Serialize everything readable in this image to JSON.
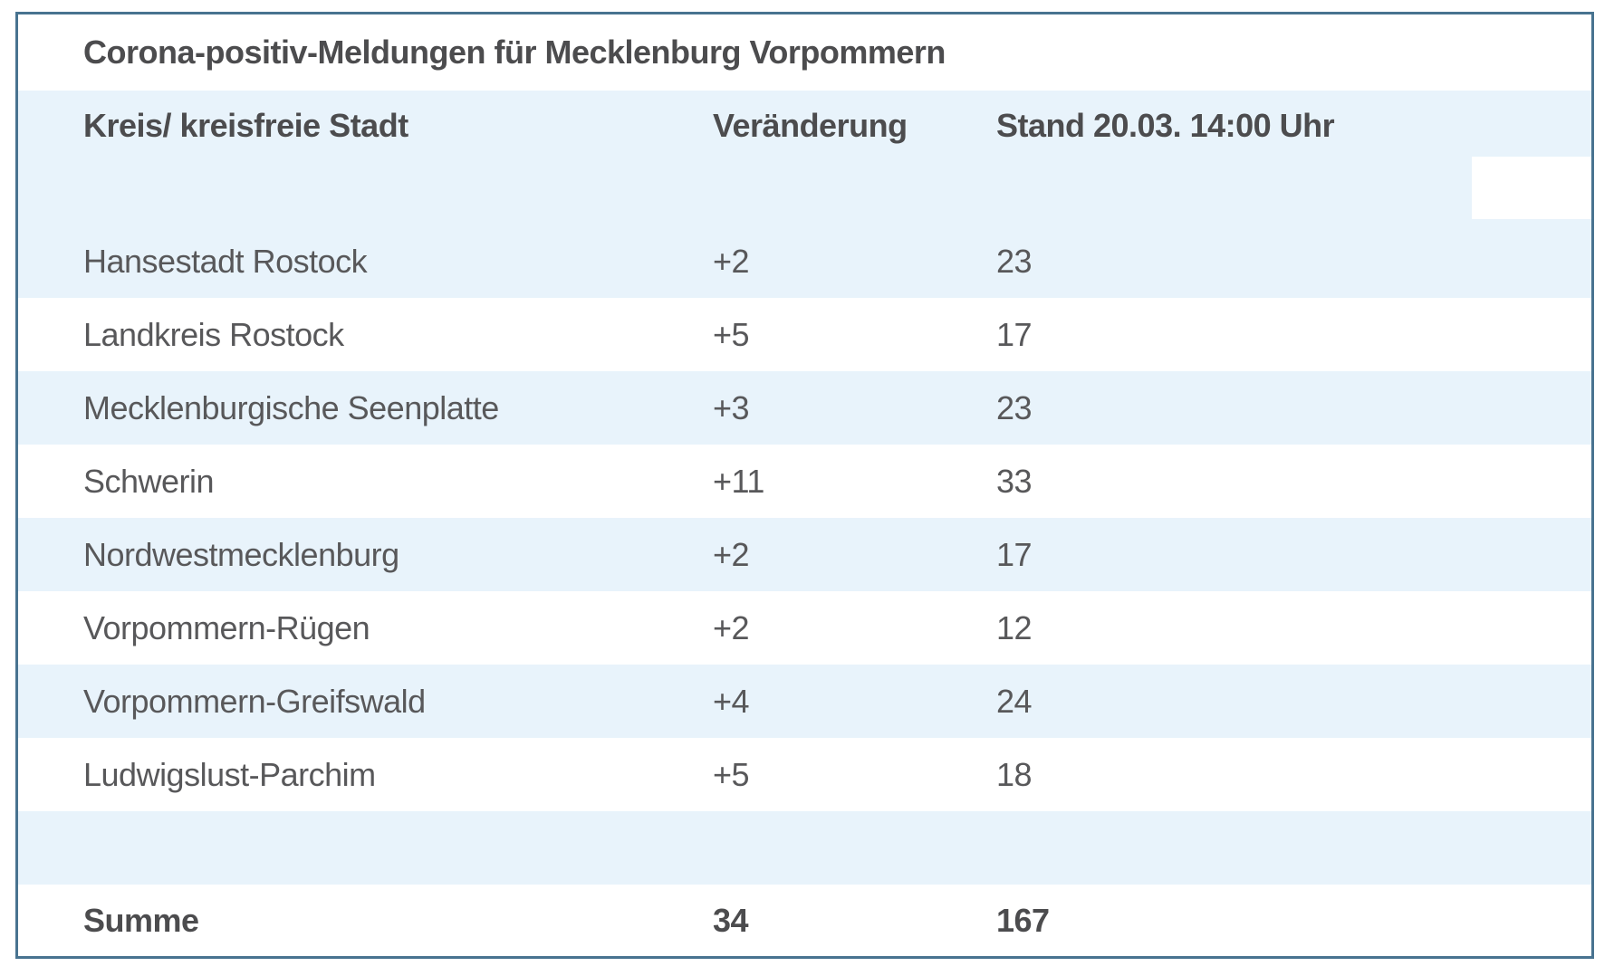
{
  "title": "Corona-positiv-Meldungen für Mecklenburg Vorpommern",
  "header": {
    "region": "Kreis/ kreisfreie Stadt",
    "change": "Veränderung",
    "stand": "Stand 20.03. 14:00 Uhr"
  },
  "rows": [
    {
      "name": "Hansestadt Rostock",
      "change": "+2",
      "count": "23"
    },
    {
      "name": "Landkreis Rostock",
      "change": "+5",
      "count": "17"
    },
    {
      "name": "Mecklenburgische Seenplatte",
      "change": "+3",
      "count": "23"
    },
    {
      "name": "Schwerin",
      "change": "+11",
      "count": "33"
    },
    {
      "name": "Nordwestmecklenburg",
      "change": "+2",
      "count": "17"
    },
    {
      "name": "Vorpommern-Rügen",
      "change": "+2",
      "count": "12"
    },
    {
      "name": "Vorpommern-Greifswald",
      "change": "+4",
      "count": "24"
    },
    {
      "name": "Ludwigslust-Parchim",
      "change": "+5",
      "count": "18"
    }
  ],
  "summary": {
    "label": "Summe",
    "change": "34",
    "count": "167"
  },
  "colors": {
    "table_border": "#487390",
    "row_highlight": "#e8f3fb",
    "row_white": "#ffffff",
    "text_regular": "#58585a",
    "text_bold": "#4c4c4e"
  },
  "chart_data": {
    "type": "table",
    "title": "Corona-positiv-Meldungen für Mecklenburg Vorpommern",
    "columns": [
      "Kreis/ kreisfreie Stadt",
      "Veränderung",
      "Stand 20.03. 14:00 Uhr"
    ],
    "rows": [
      [
        "Hansestadt Rostock",
        "+2",
        23
      ],
      [
        "Landkreis Rostock",
        "+5",
        17
      ],
      [
        "Mecklenburgische Seenplatte",
        "+3",
        23
      ],
      [
        "Schwerin",
        "+11",
        33
      ],
      [
        "Nordwestmecklenburg",
        "+2",
        17
      ],
      [
        "Vorpommern-Rügen",
        "+2",
        12
      ],
      [
        "Vorpommern-Greifswald",
        "+4",
        24
      ],
      [
        "Ludwigslust-Parchim",
        "+5",
        18
      ]
    ],
    "summary_row": [
      "Summe",
      34,
      167
    ],
    "layout_hints": {
      "striped": true,
      "stripe_color": "#e8f3fb",
      "header_background": "#e8f3fb",
      "outer_border": "3px solid #487390"
    }
  }
}
